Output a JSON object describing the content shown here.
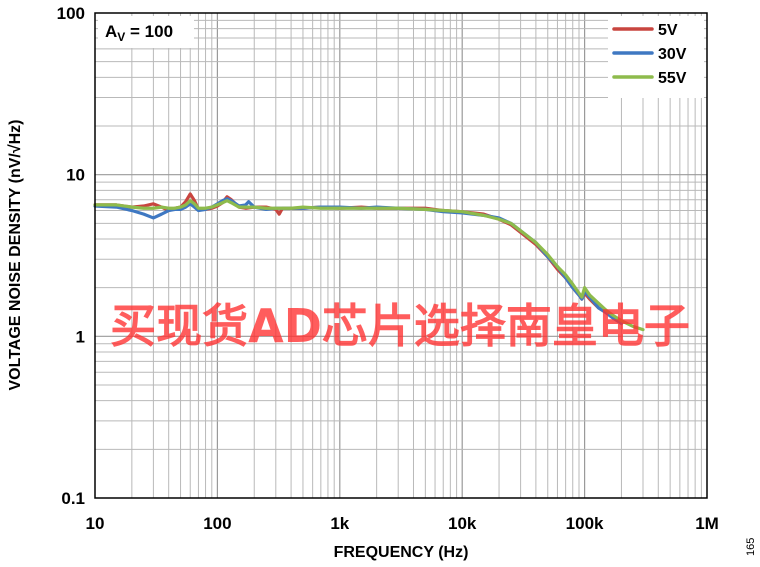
{
  "chart_data": {
    "type": "line",
    "title": "",
    "xlabel": "FREQUENCY (Hz)",
    "ylabel": "VOLTAGE NOISE DENSITY (nV/√Hz)",
    "xscale": "log",
    "yscale": "log",
    "xlim": [
      10,
      1000000
    ],
    "ylim": [
      0.1,
      100
    ],
    "xticks": [
      {
        "value": 10,
        "label": "10"
      },
      {
        "value": 100,
        "label": "100"
      },
      {
        "value": 1000,
        "label": "1k"
      },
      {
        "value": 10000,
        "label": "10k"
      },
      {
        "value": 100000,
        "label": "100k"
      },
      {
        "value": 1000000,
        "label": "1M"
      }
    ],
    "yticks": [
      {
        "value": 0.1,
        "label": "0.1"
      },
      {
        "value": 1,
        "label": "1"
      },
      {
        "value": 10,
        "label": "10"
      },
      {
        "value": 100,
        "label": "100"
      }
    ],
    "grid": true,
    "legend_position": "top-right",
    "annotation": {
      "main": "A",
      "sub": "V",
      "rest": " = 100"
    },
    "series": [
      {
        "name": "5V",
        "color": "#c8453f",
        "points": [
          [
            10,
            6.5
          ],
          [
            15,
            6.5
          ],
          [
            20,
            6.3
          ],
          [
            25,
            6.4
          ],
          [
            30,
            6.6
          ],
          [
            35,
            6.3
          ],
          [
            40,
            6.0
          ],
          [
            45,
            6.2
          ],
          [
            50,
            6.3
          ],
          [
            55,
            6.8
          ],
          [
            60,
            7.6
          ],
          [
            65,
            6.9
          ],
          [
            70,
            6.1
          ],
          [
            80,
            6.1
          ],
          [
            90,
            6.2
          ],
          [
            100,
            6.4
          ],
          [
            110,
            6.7
          ],
          [
            120,
            7.3
          ],
          [
            130,
            7.0
          ],
          [
            150,
            6.3
          ],
          [
            170,
            6.2
          ],
          [
            200,
            6.3
          ],
          [
            250,
            6.3
          ],
          [
            300,
            6.1
          ],
          [
            320,
            5.7
          ],
          [
            340,
            6.2
          ],
          [
            400,
            6.2
          ],
          [
            500,
            6.2
          ],
          [
            700,
            6.3
          ],
          [
            1000,
            6.2
          ],
          [
            1500,
            6.3
          ],
          [
            2000,
            6.2
          ],
          [
            3000,
            6.2
          ],
          [
            5000,
            6.2
          ],
          [
            7000,
            6.0
          ],
          [
            10000,
            5.9
          ],
          [
            15000,
            5.7
          ],
          [
            20000,
            5.3
          ],
          [
            25000,
            4.9
          ],
          [
            30000,
            4.4
          ],
          [
            40000,
            3.7
          ],
          [
            50000,
            3.1
          ],
          [
            60000,
            2.6
          ],
          [
            70000,
            2.3
          ],
          [
            80000,
            2.0
          ],
          [
            90000,
            1.8
          ],
          [
            95000,
            1.7
          ],
          [
            100000,
            1.85
          ],
          [
            110000,
            1.7
          ],
          [
            130000,
            1.5
          ],
          [
            150000,
            1.4
          ],
          [
            170000,
            1.3
          ]
        ]
      },
      {
        "name": "30V",
        "color": "#3f78c2",
        "points": [
          [
            10,
            6.4
          ],
          [
            15,
            6.3
          ],
          [
            20,
            6.0
          ],
          [
            25,
            5.7
          ],
          [
            30,
            5.4
          ],
          [
            35,
            5.7
          ],
          [
            40,
            6.0
          ],
          [
            45,
            6.1
          ],
          [
            50,
            6.1
          ],
          [
            55,
            6.3
          ],
          [
            60,
            6.6
          ],
          [
            65,
            6.3
          ],
          [
            70,
            6.0
          ],
          [
            80,
            6.1
          ],
          [
            90,
            6.3
          ],
          [
            100,
            6.6
          ],
          [
            110,
            6.9
          ],
          [
            120,
            7.1
          ],
          [
            130,
            6.9
          ],
          [
            150,
            6.4
          ],
          [
            170,
            6.5
          ],
          [
            180,
            6.8
          ],
          [
            200,
            6.3
          ],
          [
            250,
            6.1
          ],
          [
            300,
            6.2
          ],
          [
            400,
            6.2
          ],
          [
            500,
            6.2
          ],
          [
            700,
            6.3
          ],
          [
            1000,
            6.3
          ],
          [
            1500,
            6.2
          ],
          [
            2000,
            6.3
          ],
          [
            3000,
            6.2
          ],
          [
            5000,
            6.1
          ],
          [
            7000,
            5.9
          ],
          [
            10000,
            5.8
          ],
          [
            15000,
            5.6
          ],
          [
            20000,
            5.4
          ],
          [
            25000,
            5.0
          ],
          [
            30000,
            4.5
          ],
          [
            40000,
            3.8
          ],
          [
            50000,
            3.1
          ],
          [
            60000,
            2.7
          ],
          [
            70000,
            2.3
          ],
          [
            80000,
            2.0
          ],
          [
            90000,
            1.8
          ],
          [
            95000,
            1.7
          ],
          [
            100000,
            1.9
          ],
          [
            110000,
            1.75
          ],
          [
            130000,
            1.5
          ],
          [
            150000,
            1.4
          ],
          [
            170000,
            1.3
          ],
          [
            200000,
            1.2
          ]
        ]
      },
      {
        "name": "55V",
        "color": "#8ebb4c",
        "points": [
          [
            10,
            6.5
          ],
          [
            15,
            6.5
          ],
          [
            20,
            6.3
          ],
          [
            25,
            6.2
          ],
          [
            30,
            6.2
          ],
          [
            35,
            6.3
          ],
          [
            40,
            6.2
          ],
          [
            45,
            6.2
          ],
          [
            50,
            6.3
          ],
          [
            55,
            6.5
          ],
          [
            60,
            6.9
          ],
          [
            65,
            6.6
          ],
          [
            70,
            6.2
          ],
          [
            80,
            6.2
          ],
          [
            90,
            6.3
          ],
          [
            100,
            6.5
          ],
          [
            110,
            6.7
          ],
          [
            120,
            6.9
          ],
          [
            130,
            6.7
          ],
          [
            150,
            6.3
          ],
          [
            170,
            6.3
          ],
          [
            200,
            6.3
          ],
          [
            250,
            6.2
          ],
          [
            300,
            6.2
          ],
          [
            400,
            6.2
          ],
          [
            500,
            6.3
          ],
          [
            700,
            6.2
          ],
          [
            1000,
            6.2
          ],
          [
            1500,
            6.2
          ],
          [
            2000,
            6.2
          ],
          [
            3000,
            6.2
          ],
          [
            5000,
            6.1
          ],
          [
            7000,
            6.0
          ],
          [
            10000,
            5.9
          ],
          [
            15000,
            5.6
          ],
          [
            20000,
            5.3
          ],
          [
            25000,
            5.0
          ],
          [
            30000,
            4.5
          ],
          [
            40000,
            3.8
          ],
          [
            50000,
            3.2
          ],
          [
            60000,
            2.7
          ],
          [
            70000,
            2.4
          ],
          [
            80000,
            2.1
          ],
          [
            90000,
            1.85
          ],
          [
            95000,
            1.75
          ],
          [
            100000,
            2.0
          ],
          [
            110000,
            1.8
          ],
          [
            130000,
            1.6
          ],
          [
            150000,
            1.45
          ],
          [
            170000,
            1.35
          ],
          [
            200000,
            1.25
          ],
          [
            250000,
            1.15
          ],
          [
            300000,
            1.1
          ]
        ]
      }
    ]
  },
  "watermark": "买现货AD芯片选择南皇电子",
  "figure_id": "165"
}
